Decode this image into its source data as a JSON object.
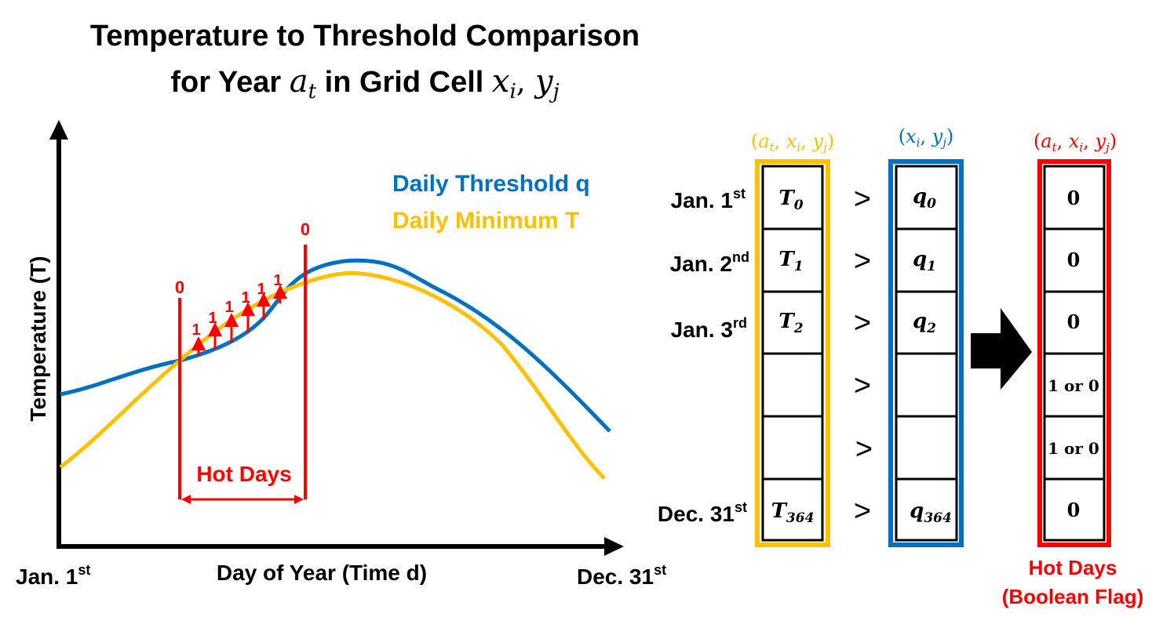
{
  "title": {
    "line1": "Temperature to Threshold Comparison",
    "line2_prefix": "for Year ",
    "year_var": "a",
    "year_sub": "t",
    "line2_mid": " in Grid Cell ",
    "cell_x": "x",
    "cell_x_sub": "i",
    "cell_sep": ", ",
    "cell_y": "y",
    "cell_y_sub": "j"
  },
  "plot": {
    "ylabel": "Temperature (T)",
    "xlabel": "Day of Year (Time d)",
    "x_start": {
      "base": "Jan. 1",
      "sup": "st"
    },
    "x_end": {
      "base": "Dec. 31",
      "sup": "st"
    },
    "legend": [
      {
        "label": "Daily Threshold q",
        "color": "#0070C0"
      },
      {
        "label": "Daily Minimum T",
        "color": "#FFC000"
      }
    ],
    "boundary_start_label": "0",
    "boundary_end_label": "0",
    "exceedance_labels": [
      "1",
      "1",
      "1",
      "1",
      "1",
      "1"
    ],
    "hot_days_label": "Hot Days",
    "highlight_color": "#FF0000"
  },
  "table": {
    "temp_header": {
      "a": "a",
      "a_sub": "t",
      "x": "x",
      "x_sub": "i",
      "y": "y",
      "y_sub": "j",
      "color": "#FFC000"
    },
    "threshold_header": {
      "x": "x",
      "x_sub": "i",
      "y": "y",
      "y_sub": "j",
      "color": "#0070C0"
    },
    "flag_header": {
      "a": "a",
      "a_sub": "t",
      "x": "x",
      "x_sub": "i",
      "y": "y",
      "y_sub": "j",
      "color": "#FF0000"
    },
    "comparator": ">",
    "rows": [
      {
        "date": "Jan. 1",
        "date_sup": "st",
        "temp": "T",
        "temp_sub": "0",
        "thr": "q",
        "thr_sub": "0",
        "flag": "0"
      },
      {
        "date": "Jan. 2",
        "date_sup": "nd",
        "temp": "T",
        "temp_sub": "1",
        "thr": "q",
        "thr_sub": "1",
        "flag": "0"
      },
      {
        "date": "Jan. 3",
        "date_sup": "rd",
        "temp": "T",
        "temp_sub": "2",
        "thr": "q",
        "thr_sub": "2",
        "flag": "0"
      },
      {
        "date": "",
        "date_sup": "",
        "temp": "",
        "temp_sub": "",
        "thr": "",
        "thr_sub": "",
        "flag": "1 or 0"
      },
      {
        "date": "",
        "date_sup": "",
        "temp": "",
        "temp_sub": "",
        "thr": "",
        "thr_sub": "",
        "flag": "1 or 0"
      },
      {
        "date": "Dec. 31",
        "date_sup": "st",
        "temp": "T",
        "temp_sub": "364",
        "thr": "q",
        "thr_sub": "364",
        "flag": "0"
      }
    ],
    "flag_caption_line1": "Hot Days",
    "flag_caption_line2": "(Boolean Flag)"
  },
  "arrow_icon": "right-arrow-icon"
}
